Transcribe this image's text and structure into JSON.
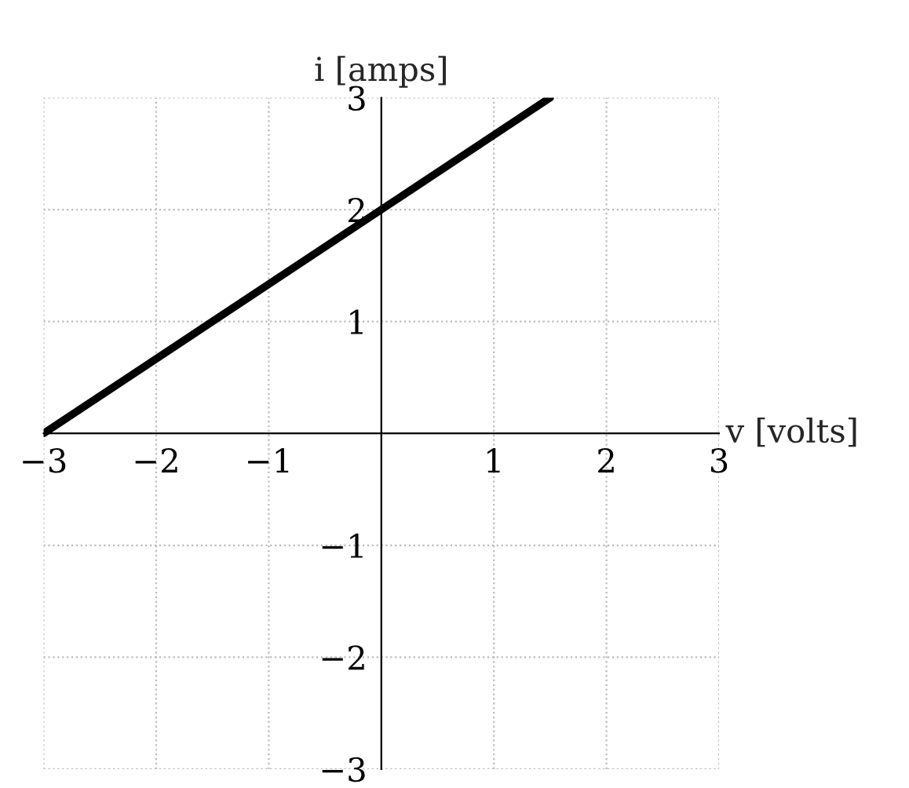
{
  "chart_data": {
    "type": "line",
    "xlabel": "v [volts]",
    "ylabel": "i [amps]",
    "x": [
      -3,
      1.5
    ],
    "series": [
      {
        "color": "#000000",
        "values": [
          0,
          3
        ]
      }
    ],
    "xlim": [
      -3,
      3
    ],
    "ylim": [
      -3,
      3
    ],
    "xticks": [
      -3,
      -2,
      -1,
      1,
      2,
      3
    ],
    "yticks": [
      -3,
      -2,
      -1,
      1,
      2,
      3
    ],
    "grid": true,
    "line_style": "solid",
    "marker": "none"
  }
}
